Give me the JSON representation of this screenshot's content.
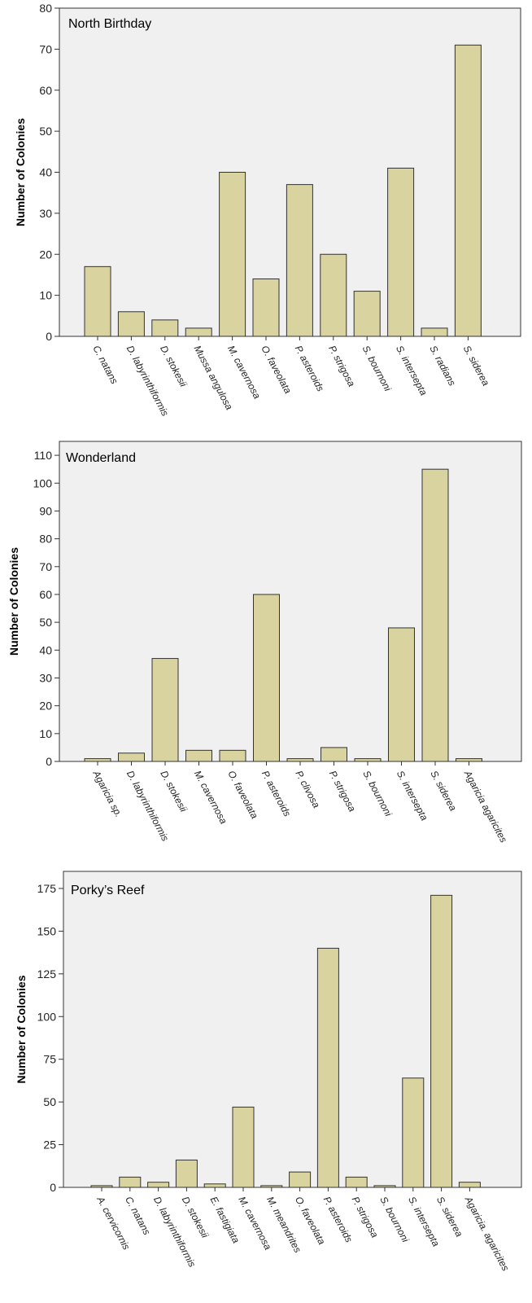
{
  "chart_data": [
    {
      "type": "bar",
      "title": "North Birthday",
      "ylabel": "Number of Colonies",
      "xlabel": "",
      "ylim": [
        0,
        80
      ],
      "yticks": [
        0,
        10,
        20,
        30,
        40,
        50,
        60,
        70,
        80
      ],
      "categories": [
        "C. natans",
        "D. labyrinthiformis",
        "D. stokesii",
        "Mussa angulosa",
        "M. cavernosa",
        "O. faveolata",
        "P. asteroids",
        "P. strigosa",
        "S. bournoni",
        "S. intersepta",
        "S. radians",
        "S. siderea"
      ],
      "values": [
        17,
        6,
        4,
        2,
        40,
        14,
        37,
        20,
        11,
        41,
        2,
        71
      ],
      "bar_color": "#d9d3a0",
      "plot_background": "#f0f0f0",
      "grid": false,
      "legend": "none"
    },
    {
      "type": "bar",
      "title": "Wonderland",
      "ylabel": "Number of Colonies",
      "xlabel": "",
      "ylim": [
        0,
        115
      ],
      "yticks": [
        0,
        10,
        20,
        30,
        40,
        50,
        60,
        70,
        80,
        90,
        100,
        110
      ],
      "categories": [
        "Agaricia sp.",
        "D. labyrinthiformis",
        "D. stokesii",
        "M. cavernosa",
        "O. faveolata",
        "P. asteroids",
        "P. clivosa",
        "P. strigosa",
        "S. bournoni",
        "S. intersepta",
        "S. siderea",
        "Agaricia agaricites"
      ],
      "values": [
        1,
        3,
        37,
        4,
        4,
        60,
        1,
        5,
        1,
        48,
        105,
        1
      ],
      "bar_color": "#d9d3a0",
      "plot_background": "#f0f0f0",
      "grid": false,
      "legend": "none"
    },
    {
      "type": "bar",
      "title": "Porky’s Reef",
      "ylabel": "Number of Colonies",
      "xlabel": "",
      "ylim": [
        0,
        185
      ],
      "yticks": [
        0,
        25,
        50,
        75,
        100,
        125,
        150,
        175
      ],
      "categories": [
        "A. cervicornis",
        "C. natans",
        "D. labyrinthiformis",
        "D. stokesii",
        "E. fastigiata",
        "M. cavernosa",
        "M. meandrites",
        "O. faveolata",
        "P. asteroids",
        "P. strigosa",
        "S. bournoni",
        "S. intersepta",
        "S. siderea",
        "Agaricia. agaricites"
      ],
      "values": [
        1,
        6,
        3,
        16,
        2,
        47,
        1,
        9,
        140,
        6,
        1,
        64,
        171,
        3
      ],
      "bar_color": "#d9d3a0",
      "plot_background": "#f0f0f0",
      "grid": false,
      "legend": "none"
    }
  ]
}
